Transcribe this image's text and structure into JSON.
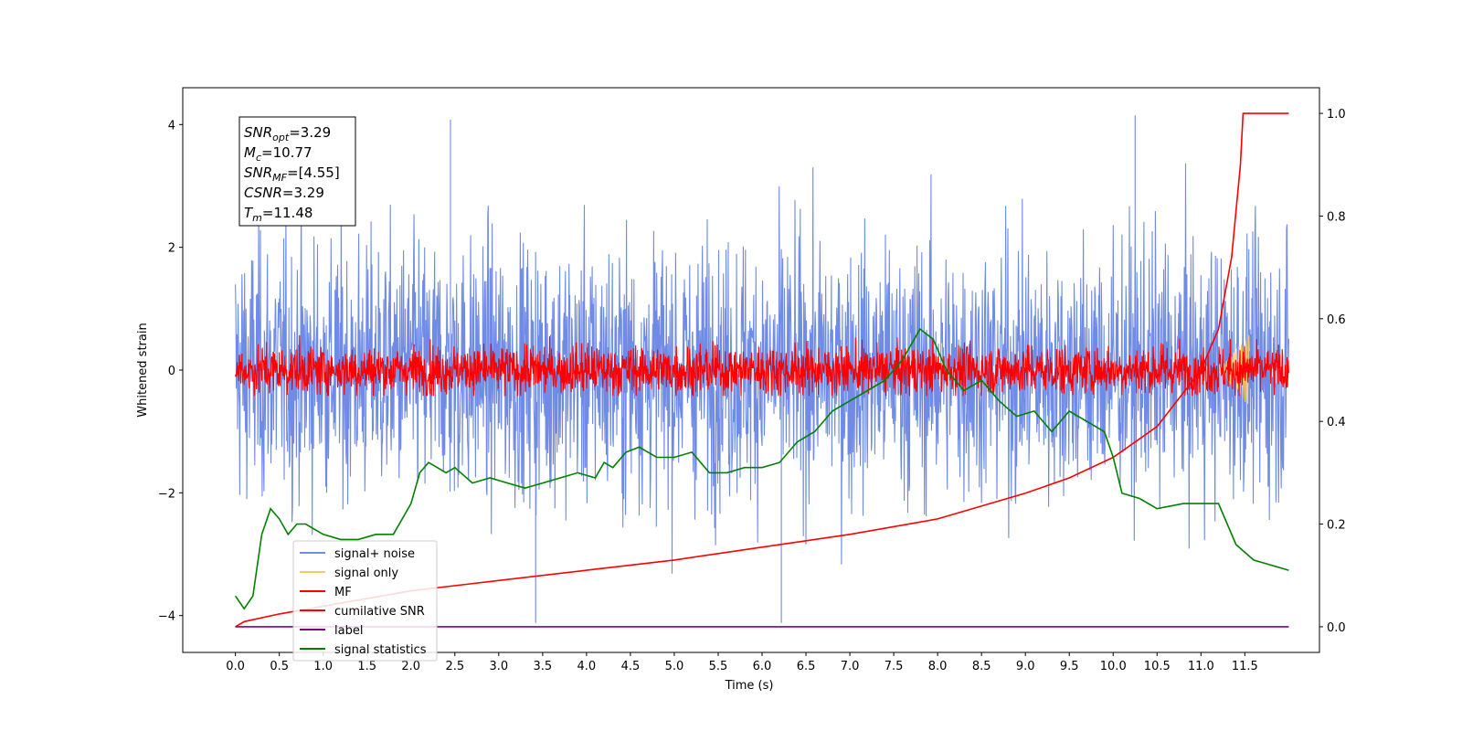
{
  "chart_data": {
    "type": "line",
    "title": "",
    "xlabel": "Time (s)",
    "ylabel": "Whitened strain",
    "xlim": [
      -0.6,
      12.35
    ],
    "ylim": [
      -4.6,
      4.6
    ],
    "y2lim": [
      -0.05,
      1.05
    ],
    "x_ticks": [
      "0.0",
      "0.5",
      "1.0",
      "1.5",
      "2.0",
      "2.5",
      "3.0",
      "3.5",
      "4.0",
      "4.5",
      "5.0",
      "5.5",
      "6.0",
      "6.5",
      "7.0",
      "7.5",
      "8.0",
      "8.5",
      "9.0",
      "9.5",
      "10.0",
      "10.5",
      "11.0",
      "11.5"
    ],
    "y_ticks": [
      "4",
      "2",
      "0",
      "−2",
      "−4"
    ],
    "y2_ticks": [
      "1.0",
      "0.8",
      "0.6",
      "0.4",
      "0.2",
      "0.0"
    ],
    "grid": false,
    "legend_position": "lower-left",
    "annotation": [
      {
        "base": "SNR",
        "sub": "opt",
        "value": "=3.29"
      },
      {
        "base": "M",
        "sub": "c",
        "value": "=10.77"
      },
      {
        "base": "SNR",
        "sub": "MF",
        "value": "=[4.55]"
      },
      {
        "base": "CSNR",
        "sub": "",
        "value": "=3.29"
      },
      {
        "base": "T",
        "sub": "m",
        "value": "=11.48"
      }
    ],
    "series": [
      {
        "name": "signal+ noise",
        "axis": "left",
        "color": "#6f8be6",
        "style": "noise",
        "x_range": [
          0.0,
          12.0
        ],
        "amplitude_std": 1.0,
        "peaks": [
          4.08,
          4.15,
          -4.12,
          -4.12
        ]
      },
      {
        "name": "signal only",
        "axis": "left",
        "color": "#f5c86b",
        "style": "small",
        "x_range": [
          11.2,
          11.55
        ],
        "peak": 0.6
      },
      {
        "name": "MF",
        "axis": "left",
        "color": "#ff0000",
        "style": "noise",
        "x_range": [
          0.0,
          12.0
        ],
        "amplitude_std": 0.2,
        "peaks": [
          0.9,
          -0.4
        ]
      },
      {
        "name": "cumilative SNR",
        "axis": "right",
        "color": "#ff0000",
        "style": "line",
        "x": [
          0.0,
          0.1,
          0.5,
          1.0,
          2.0,
          3.0,
          4.0,
          5.0,
          6.0,
          7.0,
          8.0,
          9.0,
          9.5,
          10.0,
          10.5,
          11.0,
          11.2,
          11.35,
          11.45,
          11.48,
          11.5,
          12.0
        ],
        "y": [
          0.0,
          0.01,
          0.025,
          0.04,
          0.07,
          0.09,
          0.11,
          0.13,
          0.155,
          0.18,
          0.21,
          0.26,
          0.29,
          0.33,
          0.39,
          0.5,
          0.58,
          0.72,
          0.9,
          1.0,
          1.0,
          1.0
        ]
      },
      {
        "name": "label",
        "axis": "right",
        "color": "#800080",
        "style": "line",
        "x": [
          0.0,
          12.0
        ],
        "y": [
          0.0,
          0.0
        ]
      },
      {
        "name": "signal statistics",
        "axis": "right",
        "color": "#008000",
        "style": "line",
        "x": [
          0.0,
          0.1,
          0.2,
          0.3,
          0.4,
          0.5,
          0.6,
          0.7,
          0.8,
          0.9,
          1.0,
          1.2,
          1.4,
          1.6,
          1.8,
          2.0,
          2.1,
          2.2,
          2.3,
          2.4,
          2.5,
          2.7,
          2.9,
          3.1,
          3.3,
          3.5,
          3.7,
          3.9,
          4.1,
          4.2,
          4.3,
          4.45,
          4.6,
          4.8,
          5.0,
          5.2,
          5.4,
          5.6,
          5.8,
          6.0,
          6.2,
          6.4,
          6.5,
          6.6,
          6.8,
          7.0,
          7.2,
          7.4,
          7.6,
          7.8,
          7.95,
          8.1,
          8.3,
          8.5,
          8.7,
          8.9,
          9.1,
          9.3,
          9.5,
          9.7,
          9.9,
          10.0,
          10.1,
          10.3,
          10.5,
          10.8,
          11.0,
          11.2,
          11.4,
          11.6,
          11.8,
          12.0
        ],
        "y": [
          0.06,
          0.035,
          0.06,
          0.18,
          0.23,
          0.21,
          0.18,
          0.2,
          0.2,
          0.19,
          0.18,
          0.17,
          0.17,
          0.18,
          0.18,
          0.24,
          0.3,
          0.32,
          0.31,
          0.3,
          0.31,
          0.28,
          0.29,
          0.28,
          0.27,
          0.28,
          0.29,
          0.3,
          0.29,
          0.32,
          0.31,
          0.34,
          0.35,
          0.33,
          0.33,
          0.34,
          0.3,
          0.3,
          0.31,
          0.31,
          0.32,
          0.36,
          0.37,
          0.38,
          0.42,
          0.44,
          0.46,
          0.48,
          0.52,
          0.58,
          0.56,
          0.5,
          0.46,
          0.48,
          0.44,
          0.41,
          0.42,
          0.38,
          0.42,
          0.4,
          0.38,
          0.33,
          0.26,
          0.25,
          0.23,
          0.24,
          0.24,
          0.24,
          0.16,
          0.13,
          0.12,
          0.11
        ]
      }
    ]
  }
}
